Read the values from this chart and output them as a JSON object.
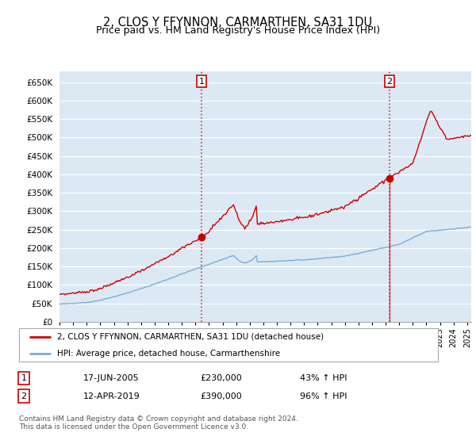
{
  "title": "2, CLOS Y FFYNNON, CARMARTHEN, SA31 1DU",
  "subtitle": "Price paid vs. HM Land Registry's House Price Index (HPI)",
  "title_fontsize": 10.5,
  "subtitle_fontsize": 9,
  "bg_color": "#ffffff",
  "plot_bg_color": "#dce9f5",
  "grid_color": "#ffffff",
  "red_color": "#cc0000",
  "blue_color": "#7aaed6",
  "sale1_date_num": 2005.46,
  "sale1_price": 230000,
  "sale2_date_num": 2019.28,
  "sale2_price": 390000,
  "vline_color": "#cc3333",
  "ylim_min": 0,
  "ylim_max": 680000,
  "ytick_step": 50000,
  "legend_label_red": "2, CLOS Y FFYNNON, CARMARTHEN, SA31 1DU (detached house)",
  "legend_label_blue": "HPI: Average price, detached house, Carmarthenshire",
  "table_row1": [
    "1",
    "17-JUN-2005",
    "£230,000",
    "43% ↑ HPI"
  ],
  "table_row2": [
    "2",
    "12-APR-2019",
    "£390,000",
    "96% ↑ HPI"
  ],
  "footer": "Contains HM Land Registry data © Crown copyright and database right 2024.\nThis data is licensed under the Open Government Licence v3.0.",
  "xmin": 1995.0,
  "xmax": 2025.3
}
